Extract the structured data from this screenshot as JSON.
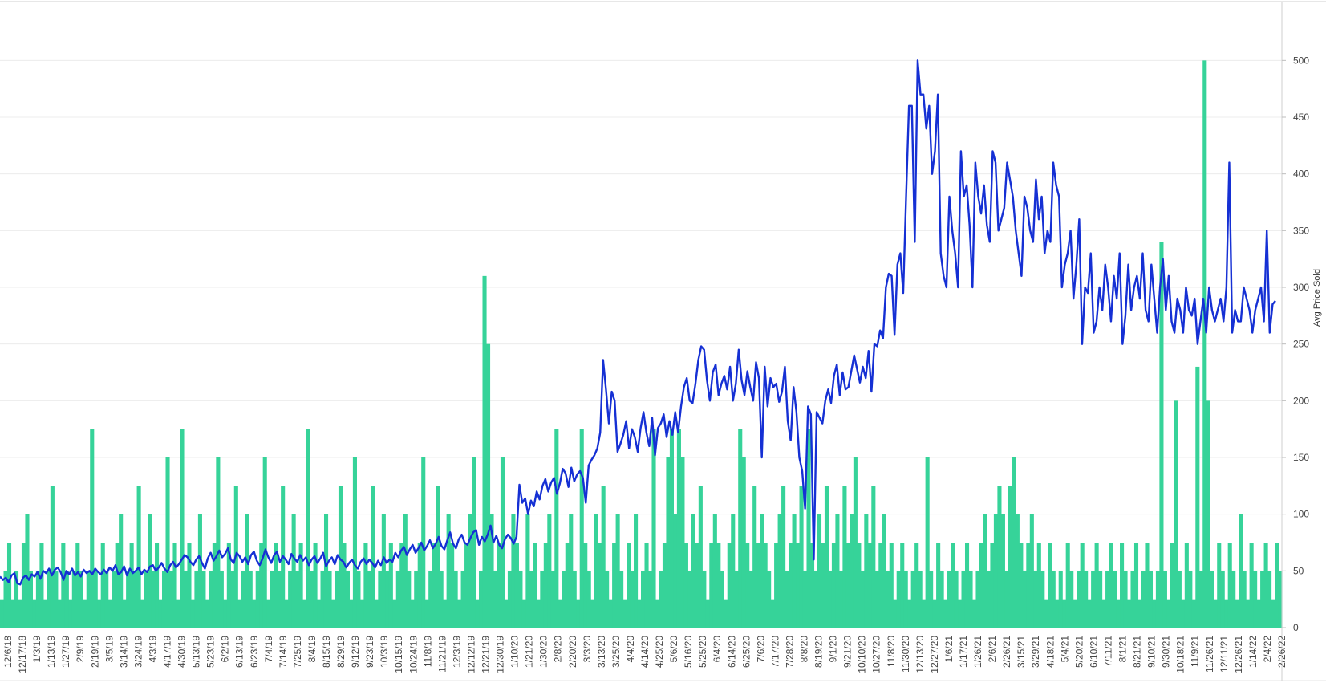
{
  "chart_data": {
    "type": "bar+line",
    "ylabel": "Avg Price Sold",
    "y_axis": {
      "position": "right",
      "ylim": [
        0,
        525
      ],
      "ticks": [
        0,
        50,
        100,
        150,
        200,
        250,
        300,
        350,
        400,
        450,
        500
      ]
    },
    "gridlines": true,
    "x_tick_labels": [
      "12/6/18",
      "12/17/18",
      "1/3/19",
      "1/13/19",
      "1/27/19",
      "2/9/19",
      "2/19/19",
      "3/5/19",
      "3/14/19",
      "3/24/19",
      "4/3/19",
      "4/17/19",
      "4/30/19",
      "5/13/19",
      "5/23/19",
      "6/2/19",
      "6/13/19",
      "6/23/19",
      "7/4/19",
      "7/14/19",
      "7/25/19",
      "8/4/19",
      "8/15/19",
      "8/29/19",
      "9/12/19",
      "9/23/19",
      "10/3/19",
      "10/15/19",
      "10/24/19",
      "11/8/19",
      "11/21/19",
      "12/3/19",
      "12/12/19",
      "12/21/19",
      "12/30/19",
      "1/10/20",
      "1/21/20",
      "1/30/20",
      "2/8/20",
      "2/20/20",
      "3/3/20",
      "3/13/20",
      "3/25/20",
      "4/4/20",
      "4/14/20",
      "4/25/20",
      "5/6/20",
      "5/16/20",
      "5/25/20",
      "6/4/20",
      "6/14/20",
      "6/25/20",
      "7/6/20",
      "7/17/20",
      "7/28/20",
      "8/8/20",
      "8/19/20",
      "9/1/20",
      "9/21/20",
      "10/10/20",
      "10/27/20",
      "11/8/20",
      "11/30/20",
      "12/13/20",
      "12/27/20",
      "1/6/21",
      "1/17/21",
      "1/26/21",
      "2/6/21",
      "2/26/21",
      "3/15/21",
      "3/29/21",
      "4/18/21",
      "5/4/21",
      "5/20/21",
      "6/10/21",
      "7/11/21",
      "8/1/21",
      "8/21/21",
      "9/10/21",
      "9/30/21",
      "10/18/21",
      "11/9/21",
      "11/26/21",
      "12/11/21",
      "12/26/21",
      "1/14/22",
      "2/4/22",
      "2/26/22"
    ],
    "series": [
      {
        "type": "line",
        "color": "#1530d4",
        "values": [
          45,
          42,
          44,
          40,
          46,
          48,
          39,
          38,
          44,
          46,
          42,
          47,
          45,
          49,
          43,
          50,
          48,
          52,
          46,
          51,
          53,
          49,
          42,
          50,
          47,
          52,
          46,
          49,
          45,
          51,
          48,
          50,
          47,
          52,
          49,
          47,
          51,
          48,
          53,
          50,
          55,
          47,
          49,
          54,
          46,
          52,
          48,
          50,
          53,
          47,
          51,
          49,
          54,
          55,
          50,
          53,
          57,
          52,
          49,
          55,
          58,
          53,
          56,
          60,
          64,
          62,
          58,
          55,
          60,
          63,
          57,
          52,
          61,
          66,
          59,
          63,
          68,
          62,
          65,
          70,
          60,
          57,
          66,
          63,
          58,
          62,
          56,
          64,
          67,
          59,
          55,
          61,
          69,
          62,
          57,
          64,
          67,
          58,
          63,
          60,
          56,
          65,
          61,
          58,
          64,
          59,
          62,
          55,
          60,
          63,
          57,
          61,
          66,
          54,
          59,
          62,
          56,
          64,
          60,
          58,
          53,
          57,
          60,
          55,
          52,
          58,
          61,
          56,
          60,
          57,
          53,
          59,
          55,
          62,
          57,
          60,
          58,
          66,
          62,
          68,
          71,
          64,
          69,
          73,
          66,
          70,
          75,
          68,
          72,
          77,
          70,
          74,
          80,
          72,
          69,
          77,
          84,
          74,
          70,
          78,
          82,
          75,
          73,
          79,
          84,
          86,
          73,
          80,
          76,
          82,
          90,
          75,
          81,
          73,
          70,
          78,
          82,
          79,
          74,
          80,
          126,
          110,
          114,
          100,
          112,
          107,
          120,
          113,
          125,
          131,
          120,
          128,
          132,
          118,
          127,
          140,
          136,
          124,
          141,
          129,
          135,
          138,
          132,
          110,
          143,
          148,
          152,
          158,
          172,
          236,
          210,
          180,
          208,
          200,
          155,
          162,
          170,
          182,
          158,
          175,
          168,
          155,
          176,
          190,
          172,
          160,
          185,
          152,
          176,
          180,
          188,
          168,
          182,
          170,
          190,
          172,
          195,
          212,
          220,
          200,
          198,
          215,
          236,
          248,
          245,
          218,
          200,
          225,
          232,
          205,
          215,
          222,
          210,
          230,
          200,
          215,
          245,
          218,
          205,
          226,
          212,
          200,
          234,
          220,
          150,
          230,
          195,
          220,
          212,
          215,
          199,
          208,
          230,
          182,
          165,
          212,
          190,
          150,
          138,
          105,
          195,
          188,
          60,
          190,
          185,
          180,
          200,
          210,
          198,
          222,
          232,
          205,
          225,
          210,
          212,
          226,
          240,
          228,
          216,
          230,
          220,
          244,
          208,
          250,
          248,
          262,
          255,
          300,
          312,
          310,
          258,
          320,
          330,
          295,
          380,
          460,
          460,
          340,
          500,
          470,
          470,
          440,
          460,
          400,
          420,
          470,
          330,
          310,
          300,
          380,
          350,
          330,
          300,
          420,
          380,
          390,
          355,
          300,
          410,
          380,
          365,
          390,
          355,
          340,
          420,
          410,
          350,
          360,
          370,
          410,
          395,
          380,
          350,
          330,
          310,
          380,
          370,
          350,
          340,
          395,
          360,
          380,
          330,
          350,
          340,
          410,
          390,
          380,
          300,
          320,
          330,
          350,
          290,
          320,
          360,
          250,
          300,
          295,
          330,
          260,
          270,
          300,
          280,
          320,
          300,
          270,
          310,
          290,
          330,
          250,
          275,
          320,
          280,
          300,
          310,
          290,
          330,
          280,
          270,
          320,
          290,
          260,
          300,
          325,
          280,
          310,
          270,
          260,
          290,
          280,
          260,
          300,
          280,
          275,
          290,
          250,
          270,
          290,
          260,
          300,
          280,
          270,
          280,
          290,
          270,
          300,
          410,
          260,
          280,
          270,
          270,
          300,
          290,
          280,
          260,
          280,
          290,
          300,
          270,
          350,
          260,
          285,
          288
        ]
      },
      {
        "type": "bar",
        "color": "#36d399",
        "values": [
          25,
          50,
          75,
          25,
          50,
          25,
          75,
          100,
          50,
          25,
          50,
          75,
          25,
          50,
          125,
          50,
          25,
          75,
          50,
          25,
          50,
          75,
          50,
          25,
          50,
          175,
          50,
          25,
          75,
          50,
          25,
          50,
          75,
          100,
          25,
          50,
          75,
          50,
          125,
          25,
          50,
          100,
          50,
          75,
          25,
          50,
          150,
          50,
          75,
          25,
          175,
          50,
          75,
          25,
          50,
          100,
          50,
          25,
          50,
          75,
          150,
          50,
          25,
          75,
          50,
          125,
          25,
          50,
          100,
          50,
          25,
          50,
          75,
          150,
          25,
          50,
          75,
          50,
          125,
          25,
          50,
          100,
          50,
          75,
          25,
          175,
          50,
          75,
          25,
          50,
          100,
          50,
          25,
          50,
          125,
          75,
          50,
          25,
          150,
          50,
          25,
          75,
          50,
          125,
          25,
          50,
          100,
          50,
          75,
          25,
          50,
          75,
          100,
          50,
          25,
          50,
          75,
          150,
          25,
          50,
          75,
          125,
          50,
          25,
          100,
          75,
          50,
          25,
          50,
          75,
          100,
          150,
          25,
          50,
          310,
          250,
          100,
          50,
          75,
          150,
          25,
          50,
          100,
          75,
          50,
          25,
          100,
          50,
          75,
          25,
          50,
          75,
          100,
          50,
          175,
          25,
          50,
          75,
          100,
          50,
          25,
          175,
          75,
          50,
          25,
          100,
          75,
          125,
          50,
          25,
          75,
          100,
          50,
          25,
          75,
          50,
          100,
          25,
          50,
          75,
          50,
          175,
          25,
          50,
          75,
          150,
          175,
          100,
          175,
          150,
          75,
          50,
          100,
          75,
          125,
          50,
          25,
          75,
          100,
          75,
          50,
          25,
          75,
          100,
          50,
          175,
          150,
          75,
          50,
          125,
          75,
          100,
          75,
          50,
          25,
          75,
          100,
          125,
          50,
          75,
          100,
          75,
          125,
          50,
          175,
          75,
          50,
          100,
          75,
          125,
          50,
          75,
          100,
          50,
          125,
          75,
          100,
          150,
          75,
          50,
          100,
          75,
          125,
          50,
          75,
          100,
          50,
          75,
          25,
          50,
          75,
          50,
          25,
          50,
          75,
          50,
          25,
          150,
          50,
          25,
          75,
          50,
          25,
          50,
          75,
          50,
          25,
          50,
          75,
          50,
          25,
          50,
          75,
          100,
          50,
          75,
          100,
          125,
          100,
          50,
          125,
          150,
          100,
          75,
          50,
          75,
          100,
          50,
          75,
          50,
          25,
          75,
          50,
          25,
          50,
          25,
          75,
          50,
          25,
          50,
          75,
          50,
          25,
          50,
          75,
          50,
          25,
          50,
          75,
          50,
          25,
          75,
          50,
          25,
          50,
          75,
          25,
          50,
          75,
          50,
          25,
          50,
          340,
          50,
          25,
          75,
          200,
          50,
          25,
          75,
          50,
          25,
          230,
          50,
          500,
          200,
          50,
          25,
          75,
          50,
          25,
          75,
          50,
          25,
          100,
          50,
          25,
          75,
          50,
          25,
          50,
          75,
          50,
          25,
          75,
          50
        ]
      }
    ]
  }
}
